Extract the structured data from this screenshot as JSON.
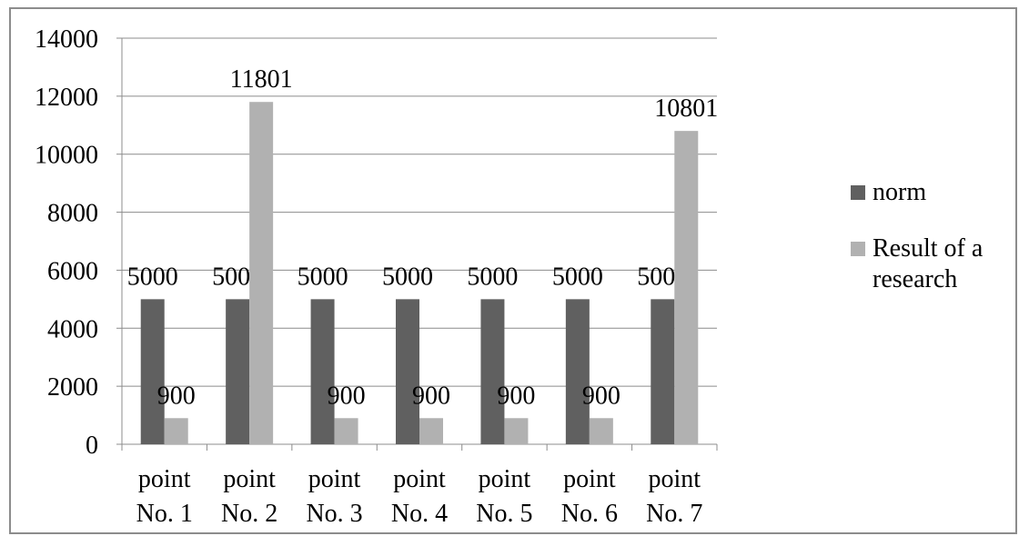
{
  "chart_data": {
    "type": "bar",
    "categories": [
      "point No. 1",
      "point No. 2",
      "point No. 3",
      "point No. 4",
      "point No. 5",
      "point No. 6",
      "point No. 7"
    ],
    "category_lines": [
      [
        "point",
        "No. 1"
      ],
      [
        "point",
        "No. 2"
      ],
      [
        "point",
        "No. 3"
      ],
      [
        "point",
        "No. 4"
      ],
      [
        "point",
        "No. 5"
      ],
      [
        "point",
        "No. 6"
      ],
      [
        "point",
        "No. 7"
      ]
    ],
    "series": [
      {
        "name": "norm",
        "color": "#606060",
        "values": [
          5000,
          5000,
          5000,
          5000,
          5000,
          5000,
          5000
        ]
      },
      {
        "name": "Result of a research",
        "color": "#b1b1b1",
        "values": [
          900,
          11801,
          900,
          900,
          900,
          900,
          10801
        ]
      }
    ],
    "ylim": [
      0,
      14000
    ],
    "yticks": [
      0,
      2000,
      4000,
      6000,
      8000,
      10000,
      12000,
      14000
    ],
    "grid": true,
    "legend_position": "right",
    "data_labels": true
  },
  "legend": {
    "items": [
      {
        "label": "norm",
        "color": "#606060"
      },
      {
        "label": "Result of a research",
        "color": "#b1b1b1"
      }
    ]
  }
}
